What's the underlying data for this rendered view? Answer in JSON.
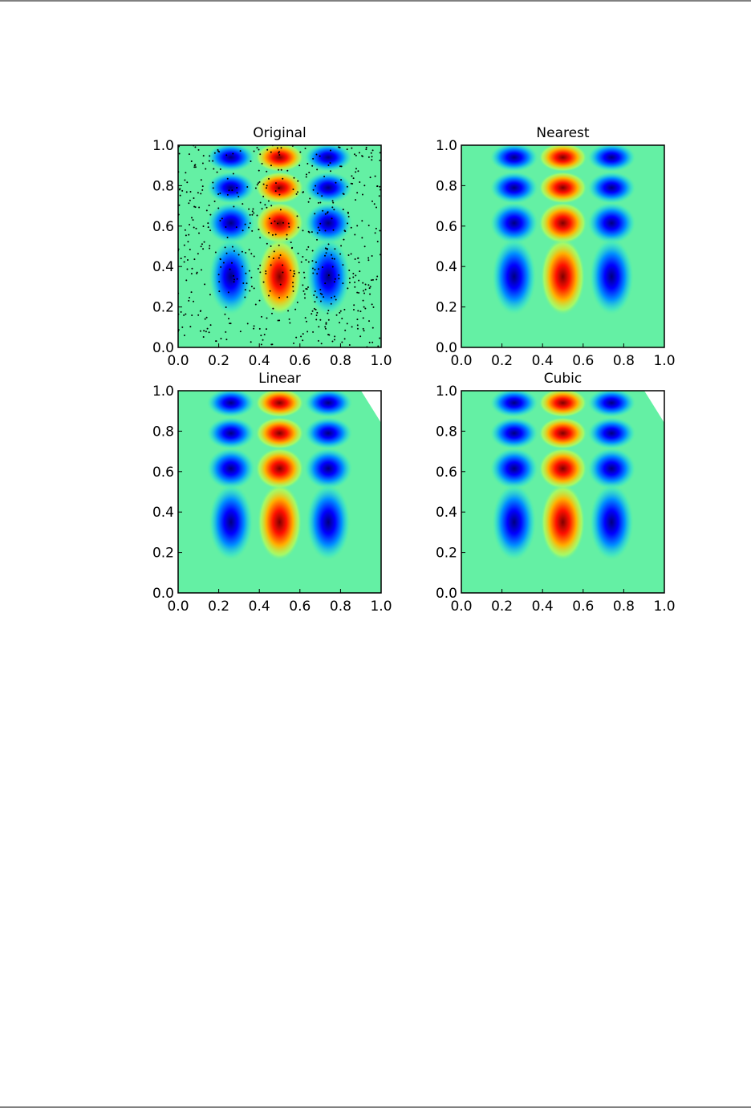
{
  "chart_data": [
    {
      "type": "heatmap",
      "title": "Original",
      "xlim": [
        0,
        1
      ],
      "ylim": [
        0,
        1
      ],
      "xticks": [
        {
          "value": 0,
          "label": "0.0"
        },
        0.2,
        0.4,
        0.6,
        0.8,
        {
          "value": 1,
          "label": "1.0"
        }
      ],
      "yticks": [
        {
          "value": 0,
          "label": "0.0"
        },
        0.2,
        0.4,
        0.6,
        0.8,
        {
          "value": 1,
          "label": "1.0"
        }
      ]
    },
    {
      "type": "heatmap",
      "title": "Nearest",
      "xlim": [
        0,
        1
      ],
      "ylim": [
        0,
        1
      ],
      "xticks": [
        {
          "value": 0,
          "label": "0.0"
        },
        0.2,
        0.4,
        0.6,
        0.8,
        {
          "value": 1,
          "label": "1.0"
        }
      ],
      "yticks": [
        {
          "value": 0,
          "label": "0.0"
        },
        0.2,
        0.4,
        0.6,
        0.8,
        {
          "value": 1,
          "label": "1.0"
        }
      ]
    },
    {
      "type": "heatmap",
      "title": "Linear",
      "xlim": [
        0,
        1
      ],
      "ylim": [
        0,
        1
      ],
      "xticks": [
        {
          "value": 0,
          "label": "0.0"
        },
        0.2,
        0.4,
        0.6,
        0.8,
        {
          "value": 1,
          "label": "1.0"
        }
      ],
      "yticks": [
        {
          "value": 0,
          "label": "0.0"
        },
        0.2,
        0.4,
        0.6,
        0.8,
        {
          "value": 1,
          "label": "1.0"
        }
      ]
    },
    {
      "type": "heatmap",
      "title": "Cubic",
      "xlim": [
        0,
        1
      ],
      "ylim": [
        0,
        1
      ],
      "xticks": [
        {
          "value": 0,
          "label": "0.0"
        },
        0.2,
        0.4,
        0.6,
        0.8,
        {
          "value": 1,
          "label": "1.0"
        }
      ],
      "yticks": [
        {
          "value": 0,
          "label": "0.0"
        },
        0.2,
        0.4,
        0.6,
        0.8,
        {
          "value": 1,
          "label": "1.0"
        }
      ]
    }
  ]
}
